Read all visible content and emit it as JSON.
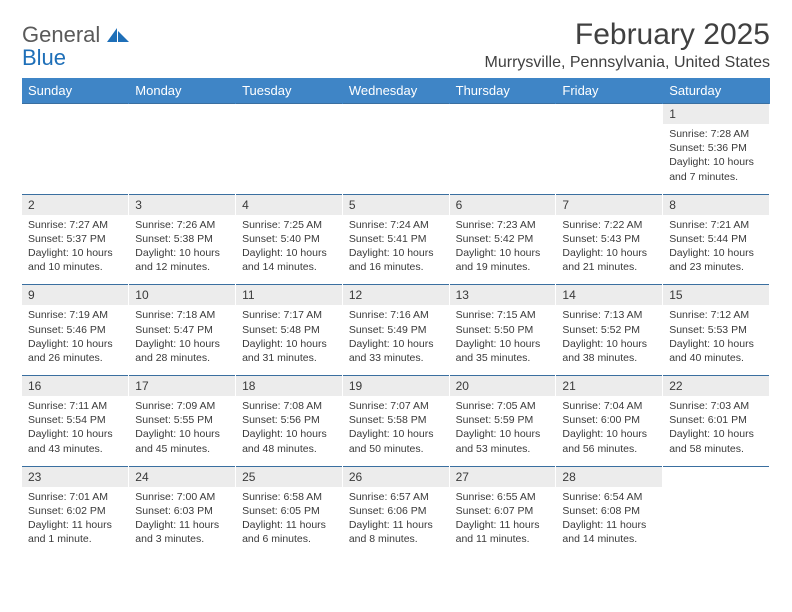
{
  "brand": {
    "part1": "General",
    "part2": "Blue"
  },
  "title": "February 2025",
  "location": "Murrysville, Pennsylvania, United States",
  "colors": {
    "header_bg": "#3f85c6",
    "header_text": "#ffffff",
    "daynum_bg": "#ececec",
    "rule": "#3a6fa0",
    "logo_gray": "#5a5a5a",
    "logo_blue": "#1e6fb8"
  },
  "weekdays": [
    "Sunday",
    "Monday",
    "Tuesday",
    "Wednesday",
    "Thursday",
    "Friday",
    "Saturday"
  ],
  "weeks": [
    {
      "nums": [
        "",
        "",
        "",
        "",
        "",
        "",
        "1"
      ],
      "details": [
        "",
        "",
        "",
        "",
        "",
        "",
        "Sunrise: 7:28 AM\nSunset: 5:36 PM\nDaylight: 10 hours and 7 minutes."
      ]
    },
    {
      "nums": [
        "2",
        "3",
        "4",
        "5",
        "6",
        "7",
        "8"
      ],
      "details": [
        "Sunrise: 7:27 AM\nSunset: 5:37 PM\nDaylight: 10 hours and 10 minutes.",
        "Sunrise: 7:26 AM\nSunset: 5:38 PM\nDaylight: 10 hours and 12 minutes.",
        "Sunrise: 7:25 AM\nSunset: 5:40 PM\nDaylight: 10 hours and 14 minutes.",
        "Sunrise: 7:24 AM\nSunset: 5:41 PM\nDaylight: 10 hours and 16 minutes.",
        "Sunrise: 7:23 AM\nSunset: 5:42 PM\nDaylight: 10 hours and 19 minutes.",
        "Sunrise: 7:22 AM\nSunset: 5:43 PM\nDaylight: 10 hours and 21 minutes.",
        "Sunrise: 7:21 AM\nSunset: 5:44 PM\nDaylight: 10 hours and 23 minutes."
      ]
    },
    {
      "nums": [
        "9",
        "10",
        "11",
        "12",
        "13",
        "14",
        "15"
      ],
      "details": [
        "Sunrise: 7:19 AM\nSunset: 5:46 PM\nDaylight: 10 hours and 26 minutes.",
        "Sunrise: 7:18 AM\nSunset: 5:47 PM\nDaylight: 10 hours and 28 minutes.",
        "Sunrise: 7:17 AM\nSunset: 5:48 PM\nDaylight: 10 hours and 31 minutes.",
        "Sunrise: 7:16 AM\nSunset: 5:49 PM\nDaylight: 10 hours and 33 minutes.",
        "Sunrise: 7:15 AM\nSunset: 5:50 PM\nDaylight: 10 hours and 35 minutes.",
        "Sunrise: 7:13 AM\nSunset: 5:52 PM\nDaylight: 10 hours and 38 minutes.",
        "Sunrise: 7:12 AM\nSunset: 5:53 PM\nDaylight: 10 hours and 40 minutes."
      ]
    },
    {
      "nums": [
        "16",
        "17",
        "18",
        "19",
        "20",
        "21",
        "22"
      ],
      "details": [
        "Sunrise: 7:11 AM\nSunset: 5:54 PM\nDaylight: 10 hours and 43 minutes.",
        "Sunrise: 7:09 AM\nSunset: 5:55 PM\nDaylight: 10 hours and 45 minutes.",
        "Sunrise: 7:08 AM\nSunset: 5:56 PM\nDaylight: 10 hours and 48 minutes.",
        "Sunrise: 7:07 AM\nSunset: 5:58 PM\nDaylight: 10 hours and 50 minutes.",
        "Sunrise: 7:05 AM\nSunset: 5:59 PM\nDaylight: 10 hours and 53 minutes.",
        "Sunrise: 7:04 AM\nSunset: 6:00 PM\nDaylight: 10 hours and 56 minutes.",
        "Sunrise: 7:03 AM\nSunset: 6:01 PM\nDaylight: 10 hours and 58 minutes."
      ]
    },
    {
      "nums": [
        "23",
        "24",
        "25",
        "26",
        "27",
        "28",
        ""
      ],
      "details": [
        "Sunrise: 7:01 AM\nSunset: 6:02 PM\nDaylight: 11 hours and 1 minute.",
        "Sunrise: 7:00 AM\nSunset: 6:03 PM\nDaylight: 11 hours and 3 minutes.",
        "Sunrise: 6:58 AM\nSunset: 6:05 PM\nDaylight: 11 hours and 6 minutes.",
        "Sunrise: 6:57 AM\nSunset: 6:06 PM\nDaylight: 11 hours and 8 minutes.",
        "Sunrise: 6:55 AM\nSunset: 6:07 PM\nDaylight: 11 hours and 11 minutes.",
        "Sunrise: 6:54 AM\nSunset: 6:08 PM\nDaylight: 11 hours and 14 minutes.",
        ""
      ]
    }
  ]
}
